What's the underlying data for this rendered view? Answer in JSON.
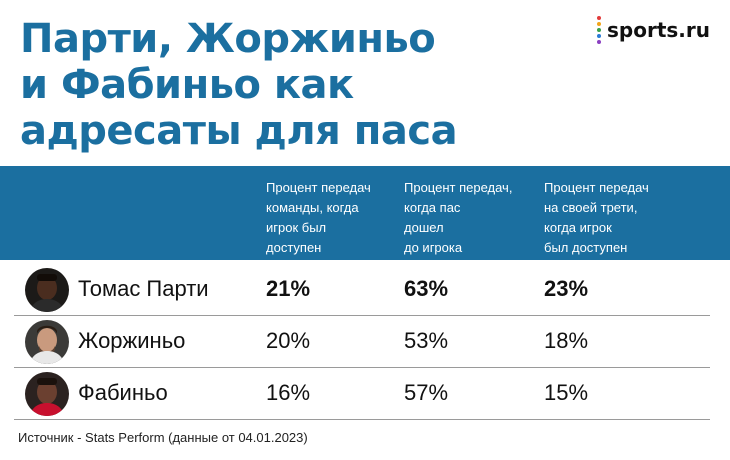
{
  "title": {
    "lines": [
      "Парти, Жоржиньо",
      "и Фабиньо как",
      "адресаты для паса"
    ]
  },
  "brand": {
    "name": "sports.ru",
    "dot_colors": [
      "#e23b3b",
      "#f2a51a",
      "#3aa14a",
      "#2a7bd6",
      "#8a3fc1"
    ]
  },
  "colors": {
    "accent": "#1b6fa0"
  },
  "table": {
    "columns": [
      {
        "lines": [
          "Процент передач",
          "команды, когда",
          "игрок был",
          "доступен"
        ]
      },
      {
        "lines": [
          "Процент передач,",
          "когда пас",
          "дошел",
          "до игрока"
        ]
      },
      {
        "lines": [
          "Процент передач",
          "на своей трети,",
          "когда игрок",
          "был доступен"
        ]
      }
    ],
    "rows": [
      {
        "name": "Томас Парти",
        "values": [
          "21%",
          "63%",
          "23%"
        ],
        "highlight": true
      },
      {
        "name": "Жоржиньо",
        "values": [
          "20%",
          "53%",
          "18%"
        ],
        "highlight": false
      },
      {
        "name": "Фабиньо",
        "values": [
          "16%",
          "57%",
          "15%"
        ],
        "highlight": false
      }
    ]
  },
  "footer": {
    "source": "Источник - Stats Perform (данные от 04.01.2023)"
  }
}
